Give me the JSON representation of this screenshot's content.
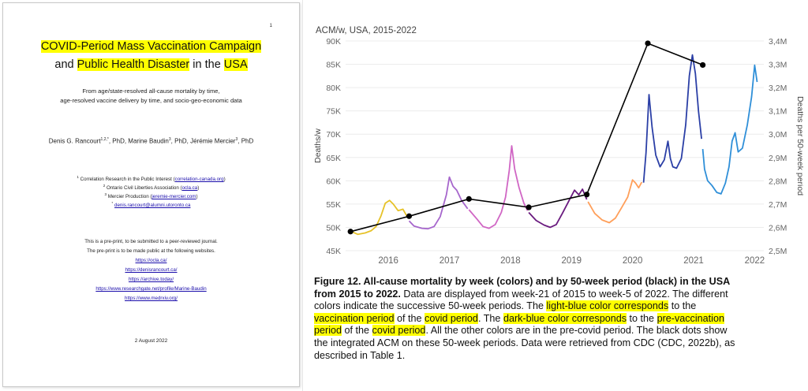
{
  "paper": {
    "page_number": "1",
    "title_parts": [
      {
        "text": "COVID-Period Mass Vaccination Campaign",
        "hl": true
      },
      {
        "text": "and ",
        "hl": false
      },
      {
        "text": "Public Health Disaster",
        "hl": true
      },
      {
        "text": " in the ",
        "hl": false
      },
      {
        "text": "USA",
        "hl": true
      }
    ],
    "subtitle_line1": "From age/state-resolved all-cause mortality by time,",
    "subtitle_line2": "age-resolved vaccine delivery by time, and socio-geo-economic data",
    "authors": "Denis G. Rancourt1,2,*, PhD, Marine Baudin3, PhD, Jérémie Mercier3, PhD",
    "affiliations": [
      {
        "sup": "1",
        "text": "Correlation Research in the Public Interest (",
        "link": "correlation-canada.org",
        "after": ")"
      },
      {
        "sup": "2",
        "text": "Ontario Civil Liberties Association (",
        "link": "ocla.ca",
        "after": ")"
      },
      {
        "sup": "3",
        "text": "Mercier Production (",
        "link": "jeremie-mercier.com",
        "after": ")"
      },
      {
        "sup": "*",
        "text": "",
        "link": "denis.rancourt@alumni.utoronto.ca",
        "after": ""
      }
    ],
    "preprint_line1": "This is a pre-print, to be submitted to a peer-reviewed journal.",
    "preprint_line2": "The pre-print is to be made public at the following websites.",
    "links": [
      "https://ocla.ca/",
      "https://denisrancourt.ca/",
      "https://archive.today/",
      "https://www.researchgate.net/profile/Marine-Baudin",
      "https://www.medrxiv.org/"
    ],
    "date": "2 August 2022"
  },
  "chart_data": {
    "type": "line",
    "title": "ACM/w, USA, 2015-2022",
    "ylabel": "Deaths/w",
    "y2label": "Deaths per 50-week period",
    "xlabel": "",
    "xlim": [
      2015.3,
      2022.15
    ],
    "ylim": [
      45000,
      90000
    ],
    "y2lim": [
      2500000,
      3400000
    ],
    "x_ticks": [
      "2016",
      "2017",
      "2018",
      "2019",
      "2020",
      "2021",
      "2022"
    ],
    "y_ticks": [
      "45K",
      "50K",
      "55K",
      "60K",
      "65K",
      "70K",
      "75K",
      "80K",
      "85K",
      "90K"
    ],
    "y2_ticks": [
      "2,5M",
      "2,6M",
      "2,7M",
      "2,8M",
      "2,9M",
      "3,0M",
      "3,1M",
      "3,2M",
      "3,3M",
      "3,4M"
    ],
    "grid": true,
    "series": [
      {
        "color": "#e6c229",
        "points": [
          [
            2015.38,
            49200
          ],
          [
            2015.5,
            48500
          ],
          [
            2015.62,
            48800
          ],
          [
            2015.72,
            49300
          ],
          [
            2015.8,
            50200
          ],
          [
            2015.88,
            52500
          ],
          [
            2015.95,
            55200
          ],
          [
            2016.02,
            55800
          ],
          [
            2016.08,
            55000
          ],
          [
            2016.16,
            53600
          ],
          [
            2016.24,
            53900
          ],
          [
            2016.32,
            52000
          ]
        ]
      },
      {
        "color": "#a666cc",
        "points": [
          [
            2016.34,
            51400
          ],
          [
            2016.42,
            50300
          ],
          [
            2016.55,
            49800
          ],
          [
            2016.65,
            49700
          ],
          [
            2016.75,
            50200
          ],
          [
            2016.85,
            52300
          ],
          [
            2016.95,
            57000
          ],
          [
            2017.0,
            60800
          ],
          [
            2017.06,
            58800
          ],
          [
            2017.12,
            58000
          ],
          [
            2017.2,
            55800
          ],
          [
            2017.3,
            54000
          ]
        ]
      },
      {
        "color": "#d066c4",
        "points": [
          [
            2017.32,
            53800
          ],
          [
            2017.45,
            51800
          ],
          [
            2017.55,
            50200
          ],
          [
            2017.65,
            49800
          ],
          [
            2017.75,
            50600
          ],
          [
            2017.85,
            53200
          ],
          [
            2017.92,
            56500
          ],
          [
            2017.98,
            62200
          ],
          [
            2018.02,
            67500
          ],
          [
            2018.07,
            62500
          ],
          [
            2018.14,
            58600
          ],
          [
            2018.22,
            55200
          ],
          [
            2018.28,
            53600
          ]
        ]
      },
      {
        "color": "#6a1b7f",
        "points": [
          [
            2018.3,
            53200
          ],
          [
            2018.42,
            51500
          ],
          [
            2018.55,
            50500
          ],
          [
            2018.65,
            50000
          ],
          [
            2018.75,
            50600
          ],
          [
            2018.85,
            53000
          ],
          [
            2018.95,
            55500
          ],
          [
            2019.05,
            58000
          ],
          [
            2019.12,
            57000
          ],
          [
            2019.18,
            58200
          ],
          [
            2019.25,
            56000
          ]
        ]
      },
      {
        "color": "#ff9f5a",
        "points": [
          [
            2019.27,
            55500
          ],
          [
            2019.38,
            53000
          ],
          [
            2019.5,
            51600
          ],
          [
            2019.62,
            51000
          ],
          [
            2019.72,
            52000
          ],
          [
            2019.82,
            54200
          ],
          [
            2019.92,
            56500
          ],
          [
            2020.0,
            60200
          ],
          [
            2020.05,
            59500
          ],
          [
            2020.1,
            58500
          ],
          [
            2020.15,
            59700
          ]
        ]
      },
      {
        "color": "#2b3fa6",
        "points": [
          [
            2020.18,
            59600
          ],
          [
            2020.22,
            66000
          ],
          [
            2020.27,
            78500
          ],
          [
            2020.32,
            71500
          ],
          [
            2020.38,
            65500
          ],
          [
            2020.45,
            63000
          ],
          [
            2020.52,
            64500
          ],
          [
            2020.58,
            68500
          ],
          [
            2020.62,
            64800
          ],
          [
            2020.66,
            63000
          ],
          [
            2020.72,
            62700
          ],
          [
            2020.8,
            64800
          ],
          [
            2020.87,
            72000
          ],
          [
            2020.93,
            82500
          ],
          [
            2020.98,
            87000
          ],
          [
            2021.03,
            83000
          ],
          [
            2021.08,
            75000
          ],
          [
            2021.13,
            69000
          ]
        ]
      },
      {
        "color": "#2f8fd8",
        "points": [
          [
            2021.15,
            66800
          ],
          [
            2021.18,
            62500
          ],
          [
            2021.23,
            60000
          ],
          [
            2021.3,
            59000
          ],
          [
            2021.38,
            57500
          ],
          [
            2021.45,
            57200
          ],
          [
            2021.52,
            59500
          ],
          [
            2021.58,
            63000
          ],
          [
            2021.63,
            68500
          ],
          [
            2021.68,
            70300
          ],
          [
            2021.73,
            66200
          ],
          [
            2021.8,
            67000
          ],
          [
            2021.88,
            72000
          ],
          [
            2021.95,
            78000
          ],
          [
            2022.0,
            84800
          ],
          [
            2022.04,
            81200
          ]
        ]
      }
    ],
    "period_totals": {
      "color": "#000000",
      "points": [
        [
          2015.38,
          2582000
        ],
        [
          2016.34,
          2648000
        ],
        [
          2017.32,
          2722000
        ],
        [
          2018.3,
          2686000
        ],
        [
          2019.25,
          2741000
        ],
        [
          2020.25,
          3390000
        ],
        [
          2021.15,
          3297000
        ]
      ]
    }
  },
  "caption": {
    "lines": [
      [
        {
          "t": "Figure 12. All-cause mortality by week (colors) and by 50-week period (black) in the USA",
          "b": true
        }
      ],
      [
        {
          "t": "from 2015 to 2022.",
          "b": true
        },
        {
          "t": " Data are displayed from week-21 of 2015 to week-5 of 2022. The different"
        }
      ],
      [
        {
          "t": "colors indicate the successive 50-week periods. The "
        },
        {
          "t": "light-blue color corresponds",
          "h": true
        },
        {
          "t": " to the"
        }
      ],
      [
        {
          "t": "vaccination period",
          "h": true
        },
        {
          "t": " of the "
        },
        {
          "t": "covid period",
          "h": true
        },
        {
          "t": ". The "
        },
        {
          "t": "dark-blue color corresponds",
          "h": true
        },
        {
          "t": " to the "
        },
        {
          "t": "pre-vaccination",
          "h": true
        }
      ],
      [
        {
          "t": "period",
          "h": true
        },
        {
          "t": " of the "
        },
        {
          "t": "covid period",
          "h": true
        },
        {
          "t": ". All the other colors are in the pre-covid period. The black dots show"
        }
      ],
      [
        {
          "t": "the integrated ACM on these 50-week periods. Data were retrieved from CDC (CDC, 2022b), as"
        }
      ],
      [
        {
          "t": "described in Table 1."
        }
      ]
    ]
  }
}
